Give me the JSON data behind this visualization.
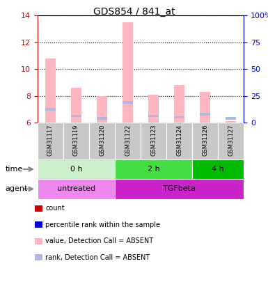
{
  "title": "GDS854 / 841_at",
  "samples": [
    "GSM31117",
    "GSM31119",
    "GSM31120",
    "GSM31122",
    "GSM31123",
    "GSM31124",
    "GSM31126",
    "GSM31127"
  ],
  "bar_values": [
    10.8,
    8.6,
    8.0,
    13.5,
    8.1,
    8.8,
    8.3,
    6.1
  ],
  "rank_values": [
    7.0,
    6.5,
    6.3,
    7.5,
    6.5,
    6.4,
    6.65,
    6.3
  ],
  "bar_base": 6.0,
  "ylim_left": [
    6,
    14
  ],
  "ylim_right": [
    0,
    100
  ],
  "yticks_left": [
    6,
    8,
    10,
    12,
    14
  ],
  "yticks_right": [
    0,
    25,
    50,
    75,
    100
  ],
  "yticklabels_right": [
    "0",
    "25",
    "50",
    "75",
    "100%"
  ],
  "bar_color_absent": "#ffb6c1",
  "rank_color_absent": "#b0b8e0",
  "sample_bg": "#c8c8c8",
  "time_groups": [
    {
      "label": "0 h",
      "start": 0,
      "end": 3,
      "color": "#ccf0cc"
    },
    {
      "label": "2 h",
      "start": 3,
      "end": 6,
      "color": "#44dd44"
    },
    {
      "label": "4 h",
      "start": 6,
      "end": 8,
      "color": "#00bb00"
    }
  ],
  "agent_groups": [
    {
      "label": "untreated",
      "start": 0,
      "end": 3,
      "color": "#ee88ee"
    },
    {
      "label": "TGFbeta",
      "start": 3,
      "end": 8,
      "color": "#cc22cc"
    }
  ],
  "legend_items": [
    {
      "color": "#cc0000",
      "label": "count"
    },
    {
      "color": "#0000cc",
      "label": "percentile rank within the sample"
    },
    {
      "color": "#ffb6c1",
      "label": "value, Detection Call = ABSENT"
    },
    {
      "color": "#b0b8e0",
      "label": "rank, Detection Call = ABSENT"
    }
  ],
  "left_axis_color": "#cc0000",
  "right_axis_color": "#0000cc",
  "bar_width": 0.4
}
